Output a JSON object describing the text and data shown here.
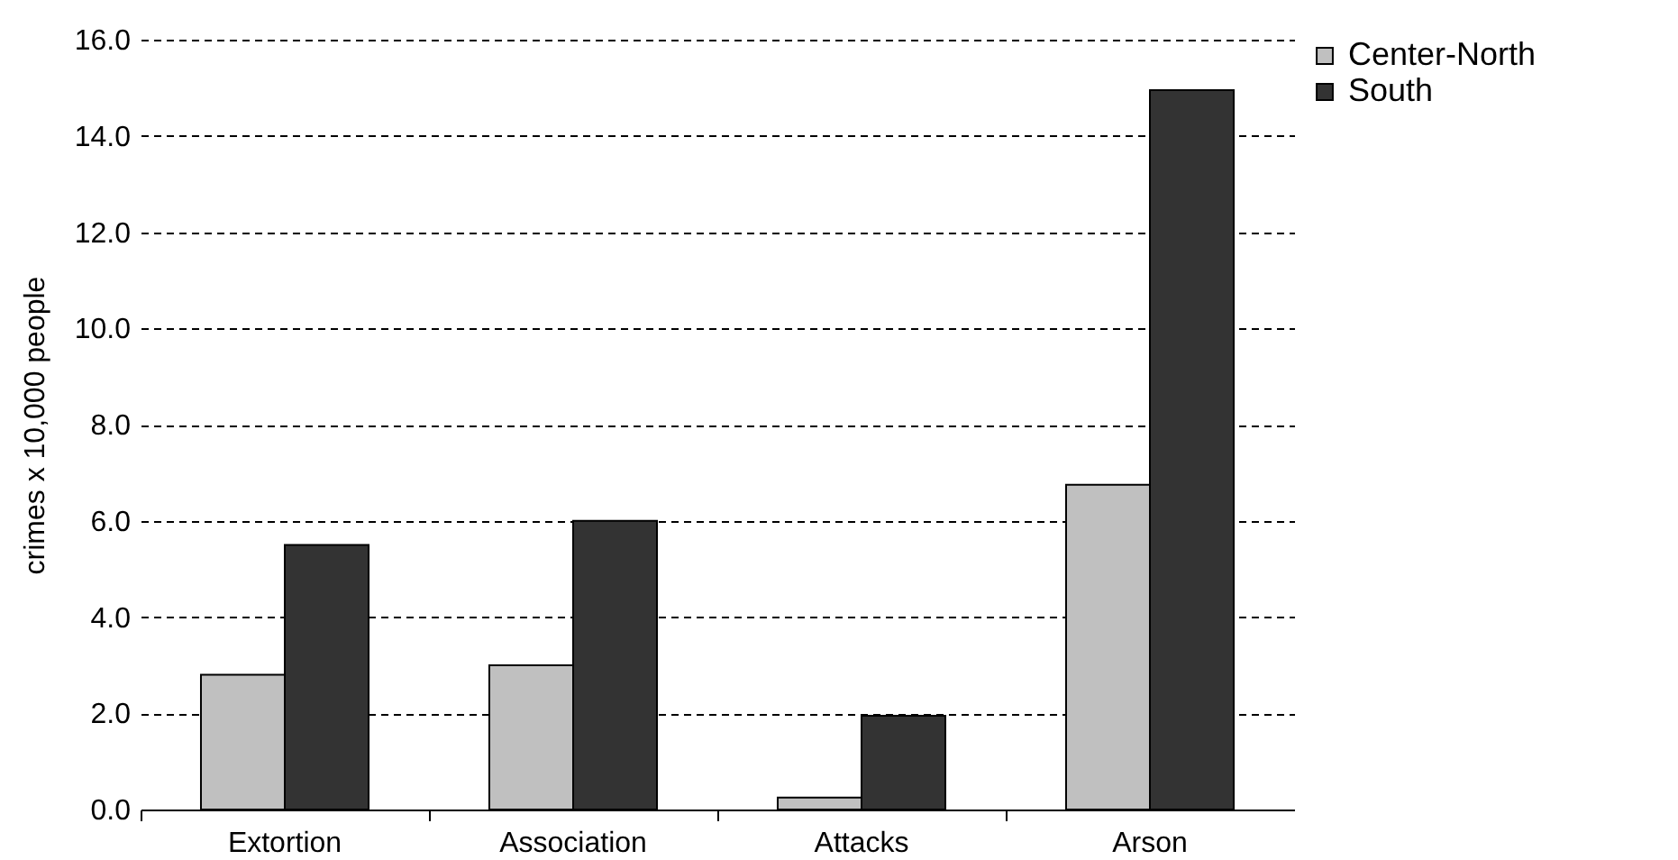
{
  "chart_data": {
    "type": "bar",
    "ylabel": "crimes x 10,000 people",
    "categories": [
      "Extortion",
      "Association",
      "Attacks",
      "Arson"
    ],
    "series": [
      {
        "name": "Center-North",
        "color": "#c0c0c0",
        "values": [
          2.8,
          3.0,
          0.25,
          6.75
        ]
      },
      {
        "name": "South",
        "color": "#333333",
        "values": [
          5.5,
          6.0,
          1.95,
          14.95
        ]
      }
    ],
    "ylim": [
      0,
      16
    ],
    "yticks": [
      {
        "value": 0,
        "label": "0.0"
      },
      {
        "value": 2,
        "label": "2.0"
      },
      {
        "value": 4,
        "label": "4.0"
      },
      {
        "value": 6,
        "label": "6.0"
      },
      {
        "value": 8,
        "label": "8.0"
      },
      {
        "value": 10,
        "label": "10.0"
      },
      {
        "value": 12,
        "label": "12.0"
      },
      {
        "value": 14,
        "label": "14.0"
      },
      {
        "value": 16,
        "label": "16.0"
      }
    ],
    "grid": "y",
    "legend": "right"
  }
}
